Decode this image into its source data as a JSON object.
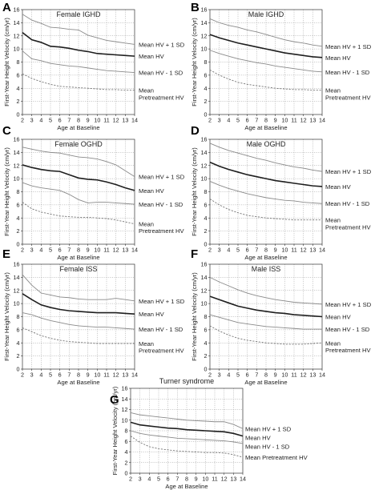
{
  "chart_data": [
    {
      "type": "line",
      "panel": "A",
      "title": "Female IGHD",
      "xlabel": "Age at Baseline",
      "ylabel": "First-Year Height Velocity (cm/yr)",
      "xlim": [
        2,
        14
      ],
      "ylim": [
        0,
        16
      ],
      "x_ticks": [
        2,
        3,
        4,
        5,
        6,
        7,
        8,
        9,
        10,
        11,
        12,
        13,
        14
      ],
      "y_ticks": [
        0,
        2,
        4,
        6,
        8,
        10,
        12,
        14,
        16
      ],
      "grid": true,
      "x": [
        2,
        3,
        4,
        5,
        6,
        7,
        8,
        9,
        10,
        11,
        12,
        13,
        14
      ],
      "series": [
        {
          "name": "Mean HV + 1 SD",
          "style": "thin",
          "values": [
            15.3,
            14.4,
            13.9,
            13.3,
            13.2,
            13.0,
            12.9,
            12.1,
            11.7,
            11.3,
            11.1,
            10.9,
            10.7
          ]
        },
        {
          "name": "Mean HV",
          "style": "thick",
          "values": [
            12.5,
            11.4,
            11.0,
            10.4,
            10.3,
            10.1,
            9.8,
            9.6,
            9.3,
            9.2,
            9.1,
            9.0,
            8.9
          ]
        },
        {
          "name": "Mean HV - 1 SD",
          "style": "thin",
          "values": [
            9.7,
            8.5,
            8.2,
            7.8,
            7.6,
            7.4,
            7.3,
            7.1,
            6.9,
            6.7,
            6.6,
            6.5,
            6.4
          ]
        },
        {
          "name": "Mean\nPretreatment HV",
          "style": "dashed",
          "values": [
            6.2,
            5.5,
            5.0,
            4.6,
            4.3,
            4.2,
            4.1,
            4.0,
            3.9,
            3.8,
            3.8,
            3.7,
            3.7
          ]
        }
      ]
    },
    {
      "type": "line",
      "panel": "B",
      "title": "Male IGHD",
      "xlabel": "Age at Baseline",
      "ylabel": "First-Year Height Velocity (cm/yr)",
      "xlim": [
        2,
        14
      ],
      "ylim": [
        0,
        16
      ],
      "x_ticks": [
        2,
        3,
        4,
        5,
        6,
        7,
        8,
        9,
        10,
        11,
        12,
        13,
        14
      ],
      "y_ticks": [
        0,
        2,
        4,
        6,
        8,
        10,
        12,
        14,
        16
      ],
      "grid": true,
      "x": [
        2,
        3,
        4,
        5,
        6,
        7,
        8,
        9,
        10,
        11,
        12,
        13,
        14
      ],
      "series": [
        {
          "name": "Mean HV + 1 SD",
          "style": "thin",
          "values": [
            14.6,
            14.0,
            13.6,
            13.3,
            12.9,
            12.6,
            12.2,
            11.8,
            11.4,
            11.1,
            10.9,
            10.6,
            10.4
          ]
        },
        {
          "name": "Mean HV",
          "style": "thick",
          "values": [
            12.2,
            11.7,
            11.3,
            10.9,
            10.6,
            10.3,
            10.0,
            9.7,
            9.4,
            9.2,
            9.0,
            8.8,
            8.7
          ]
        },
        {
          "name": "Mean HV - 1 SD",
          "style": "thin",
          "values": [
            9.8,
            9.3,
            8.9,
            8.5,
            8.2,
            7.9,
            7.7,
            7.4,
            7.2,
            7.0,
            6.8,
            6.6,
            6.5
          ]
        },
        {
          "name": "Mean\nPretreatment HV",
          "style": "dashed",
          "values": [
            6.8,
            6.0,
            5.4,
            4.9,
            4.6,
            4.4,
            4.2,
            4.0,
            3.9,
            3.8,
            3.8,
            3.7,
            3.7
          ]
        }
      ]
    },
    {
      "type": "line",
      "panel": "C",
      "title": "Female OGHD",
      "xlabel": "Age at Baseline",
      "ylabel": "First-Year Height Velocity (cm/yr)",
      "xlim": [
        2,
        14
      ],
      "ylim": [
        0,
        16
      ],
      "x_ticks": [
        2,
        3,
        4,
        5,
        6,
        7,
        8,
        9,
        10,
        11,
        12,
        13,
        14
      ],
      "y_ticks": [
        0,
        2,
        4,
        6,
        8,
        10,
        12,
        14,
        16
      ],
      "grid": true,
      "x": [
        2,
        3,
        4,
        5,
        6,
        7,
        8,
        9,
        10,
        11,
        12,
        13,
        14
      ],
      "series": [
        {
          "name": "Mean HV + 1 SD",
          "style": "thin",
          "values": [
            14.8,
            14.5,
            14.2,
            14.0,
            13.9,
            13.6,
            13.3,
            13.2,
            13.0,
            12.6,
            12.1,
            11.2,
            10.3
          ]
        },
        {
          "name": "Mean HV",
          "style": "thick",
          "values": [
            12.1,
            11.7,
            11.4,
            11.2,
            11.1,
            10.6,
            10.1,
            9.9,
            9.8,
            9.5,
            9.1,
            8.6,
            8.2
          ]
        },
        {
          "name": "Mean HV - 1 SD",
          "style": "thin",
          "values": [
            9.4,
            8.9,
            8.6,
            8.4,
            8.2,
            7.6,
            6.8,
            6.3,
            6.4,
            6.4,
            6.3,
            6.2,
            6.1
          ]
        },
        {
          "name": "Mean\nPretreatment HV",
          "style": "dashed",
          "values": [
            6.4,
            5.4,
            4.9,
            4.6,
            4.3,
            4.2,
            4.1,
            4.1,
            4.0,
            3.9,
            3.7,
            3.4,
            3.1
          ]
        }
      ]
    },
    {
      "type": "line",
      "panel": "D",
      "title": "Male OGHD",
      "xlabel": "Age at Baseline",
      "ylabel": "First-Year Height Velocity (cm/yr)",
      "xlim": [
        2,
        14
      ],
      "ylim": [
        0,
        16
      ],
      "x_ticks": [
        2,
        3,
        4,
        5,
        6,
        7,
        8,
        9,
        10,
        11,
        12,
        13,
        14
      ],
      "y_ticks": [
        0,
        2,
        4,
        6,
        8,
        10,
        12,
        14,
        16
      ],
      "grid": true,
      "x": [
        2,
        3,
        4,
        5,
        6,
        7,
        8,
        9,
        10,
        11,
        12,
        13,
        14
      ],
      "series": [
        {
          "name": "Mean HV + 1 SD",
          "style": "thin",
          "values": [
            15.4,
            14.8,
            14.3,
            13.9,
            13.5,
            13.1,
            12.8,
            12.4,
            12.1,
            11.8,
            11.6,
            11.3,
            11.1
          ]
        },
        {
          "name": "Mean HV",
          "style": "thick",
          "values": [
            12.5,
            11.9,
            11.4,
            11.0,
            10.6,
            10.3,
            10.0,
            9.7,
            9.5,
            9.3,
            9.1,
            8.9,
            8.8
          ]
        },
        {
          "name": "Mean HV - 1 SD",
          "style": "thin",
          "values": [
            9.6,
            9.0,
            8.5,
            8.1,
            7.7,
            7.4,
            7.1,
            6.9,
            6.7,
            6.6,
            6.4,
            6.3,
            6.2
          ]
        },
        {
          "name": "Mean\nPretreatment HV",
          "style": "dashed",
          "values": [
            6.9,
            6.0,
            5.3,
            4.8,
            4.4,
            4.2,
            4.0,
            3.9,
            3.8,
            3.7,
            3.7,
            3.7,
            3.7
          ]
        }
      ]
    },
    {
      "type": "line",
      "panel": "E",
      "title": "Female ISS",
      "xlabel": "Age at Baseline",
      "ylabel": "First-Year Height Velocity (cm/yr)",
      "xlim": [
        2,
        14
      ],
      "ylim": [
        0,
        16
      ],
      "x_ticks": [
        2,
        3,
        4,
        5,
        6,
        7,
        8,
        9,
        10,
        11,
        12,
        13,
        14
      ],
      "y_ticks": [
        0,
        2,
        4,
        6,
        8,
        10,
        12,
        14,
        16
      ],
      "grid": true,
      "x": [
        2,
        3,
        4,
        5,
        6,
        7,
        8,
        9,
        10,
        11,
        12,
        13,
        14
      ],
      "series": [
        {
          "name": "Mean HV + 1 SD",
          "style": "thin",
          "values": [
            14.4,
            12.8,
            11.6,
            11.3,
            11.0,
            10.9,
            10.7,
            10.6,
            10.6,
            10.6,
            10.8,
            10.6,
            10.4
          ]
        },
        {
          "name": "Mean HV",
          "style": "thick",
          "values": [
            11.5,
            10.6,
            9.8,
            9.4,
            9.1,
            8.9,
            8.8,
            8.7,
            8.6,
            8.6,
            8.6,
            8.5,
            8.4
          ]
        },
        {
          "name": "Mean HV - 1 SD",
          "style": "thin",
          "values": [
            8.6,
            8.3,
            7.8,
            7.4,
            7.1,
            6.8,
            6.6,
            6.5,
            6.4,
            6.4,
            6.3,
            6.2,
            6.1
          ]
        },
        {
          "name": "Mean\nPretreatment HV",
          "style": "dashed",
          "values": [
            6.3,
            5.7,
            5.1,
            4.7,
            4.4,
            4.2,
            4.1,
            4.0,
            3.9,
            3.9,
            3.9,
            3.9,
            3.9
          ]
        }
      ]
    },
    {
      "type": "line",
      "panel": "F",
      "title": "Male ISS",
      "xlabel": "Age at Baseline",
      "ylabel": "First-Year Height Velocity (cm/yr)",
      "xlim": [
        2,
        14
      ],
      "ylim": [
        0,
        16
      ],
      "x_ticks": [
        2,
        3,
        4,
        5,
        6,
        7,
        8,
        9,
        10,
        11,
        12,
        13,
        14
      ],
      "y_ticks": [
        0,
        2,
        4,
        6,
        8,
        10,
        12,
        14,
        16
      ],
      "grid": true,
      "x": [
        2,
        3,
        4,
        5,
        6,
        7,
        8,
        9,
        10,
        11,
        12,
        13,
        14
      ],
      "series": [
        {
          "name": "Mean HV + 1 SD",
          "style": "thin",
          "values": [
            14.0,
            13.3,
            12.7,
            12.1,
            11.6,
            11.2,
            10.9,
            10.6,
            10.4,
            10.2,
            10.1,
            10.0,
            9.9
          ]
        },
        {
          "name": "Mean HV",
          "style": "thick",
          "values": [
            11.1,
            10.6,
            10.1,
            9.6,
            9.3,
            9.0,
            8.8,
            8.6,
            8.5,
            8.3,
            8.2,
            8.1,
            8.0
          ]
        },
        {
          "name": "Mean HV - 1 SD",
          "style": "thin",
          "values": [
            8.3,
            7.9,
            7.5,
            7.1,
            6.9,
            6.7,
            6.5,
            6.4,
            6.3,
            6.2,
            6.1,
            6.1,
            6.1
          ]
        },
        {
          "name": "Mean\nPretreatment HV",
          "style": "dashed",
          "values": [
            6.6,
            5.8,
            5.2,
            4.7,
            4.4,
            4.2,
            4.0,
            3.9,
            3.8,
            3.8,
            3.8,
            3.9,
            4.0
          ]
        }
      ]
    },
    {
      "type": "line",
      "panel": "G",
      "title": "Turner syndrome",
      "xlabel": "Age at Baseline",
      "ylabel": "First-Year Height Velocity (cm/yr)",
      "xlim": [
        2,
        14
      ],
      "ylim": [
        0,
        16
      ],
      "x_ticks": [
        2,
        3,
        4,
        5,
        6,
        7,
        8,
        9,
        10,
        11,
        12,
        13,
        14
      ],
      "y_ticks": [
        0,
        2,
        4,
        6,
        8,
        10,
        12,
        14,
        16
      ],
      "grid": true,
      "x": [
        2,
        3,
        4,
        5,
        6,
        7,
        8,
        9,
        10,
        11,
        12,
        13,
        14
      ],
      "series": [
        {
          "name": "Mean HV + 1 SD",
          "style": "thin",
          "values": [
            11.4,
            11.0,
            10.8,
            10.6,
            10.4,
            10.2,
            10.0,
            9.9,
            9.8,
            9.7,
            9.7,
            9.2,
            8.4
          ]
        },
        {
          "name": "Mean HV",
          "style": "thick",
          "values": [
            9.6,
            9.1,
            8.9,
            8.7,
            8.5,
            8.4,
            8.2,
            8.1,
            8.0,
            7.9,
            7.8,
            7.5,
            7.0
          ]
        },
        {
          "name": "Mean HV - 1 SD",
          "style": "thin",
          "values": [
            8.0,
            7.5,
            7.2,
            7.0,
            6.8,
            6.6,
            6.5,
            6.4,
            6.3,
            6.2,
            6.1,
            5.9,
            5.6
          ]
        },
        {
          "name": "Mean Pretreatment HV",
          "style": "dashed",
          "values": [
            7.0,
            5.8,
            5.0,
            4.6,
            4.4,
            4.2,
            4.1,
            4.0,
            3.9,
            3.9,
            3.8,
            3.5,
            3.0
          ]
        }
      ]
    }
  ]
}
